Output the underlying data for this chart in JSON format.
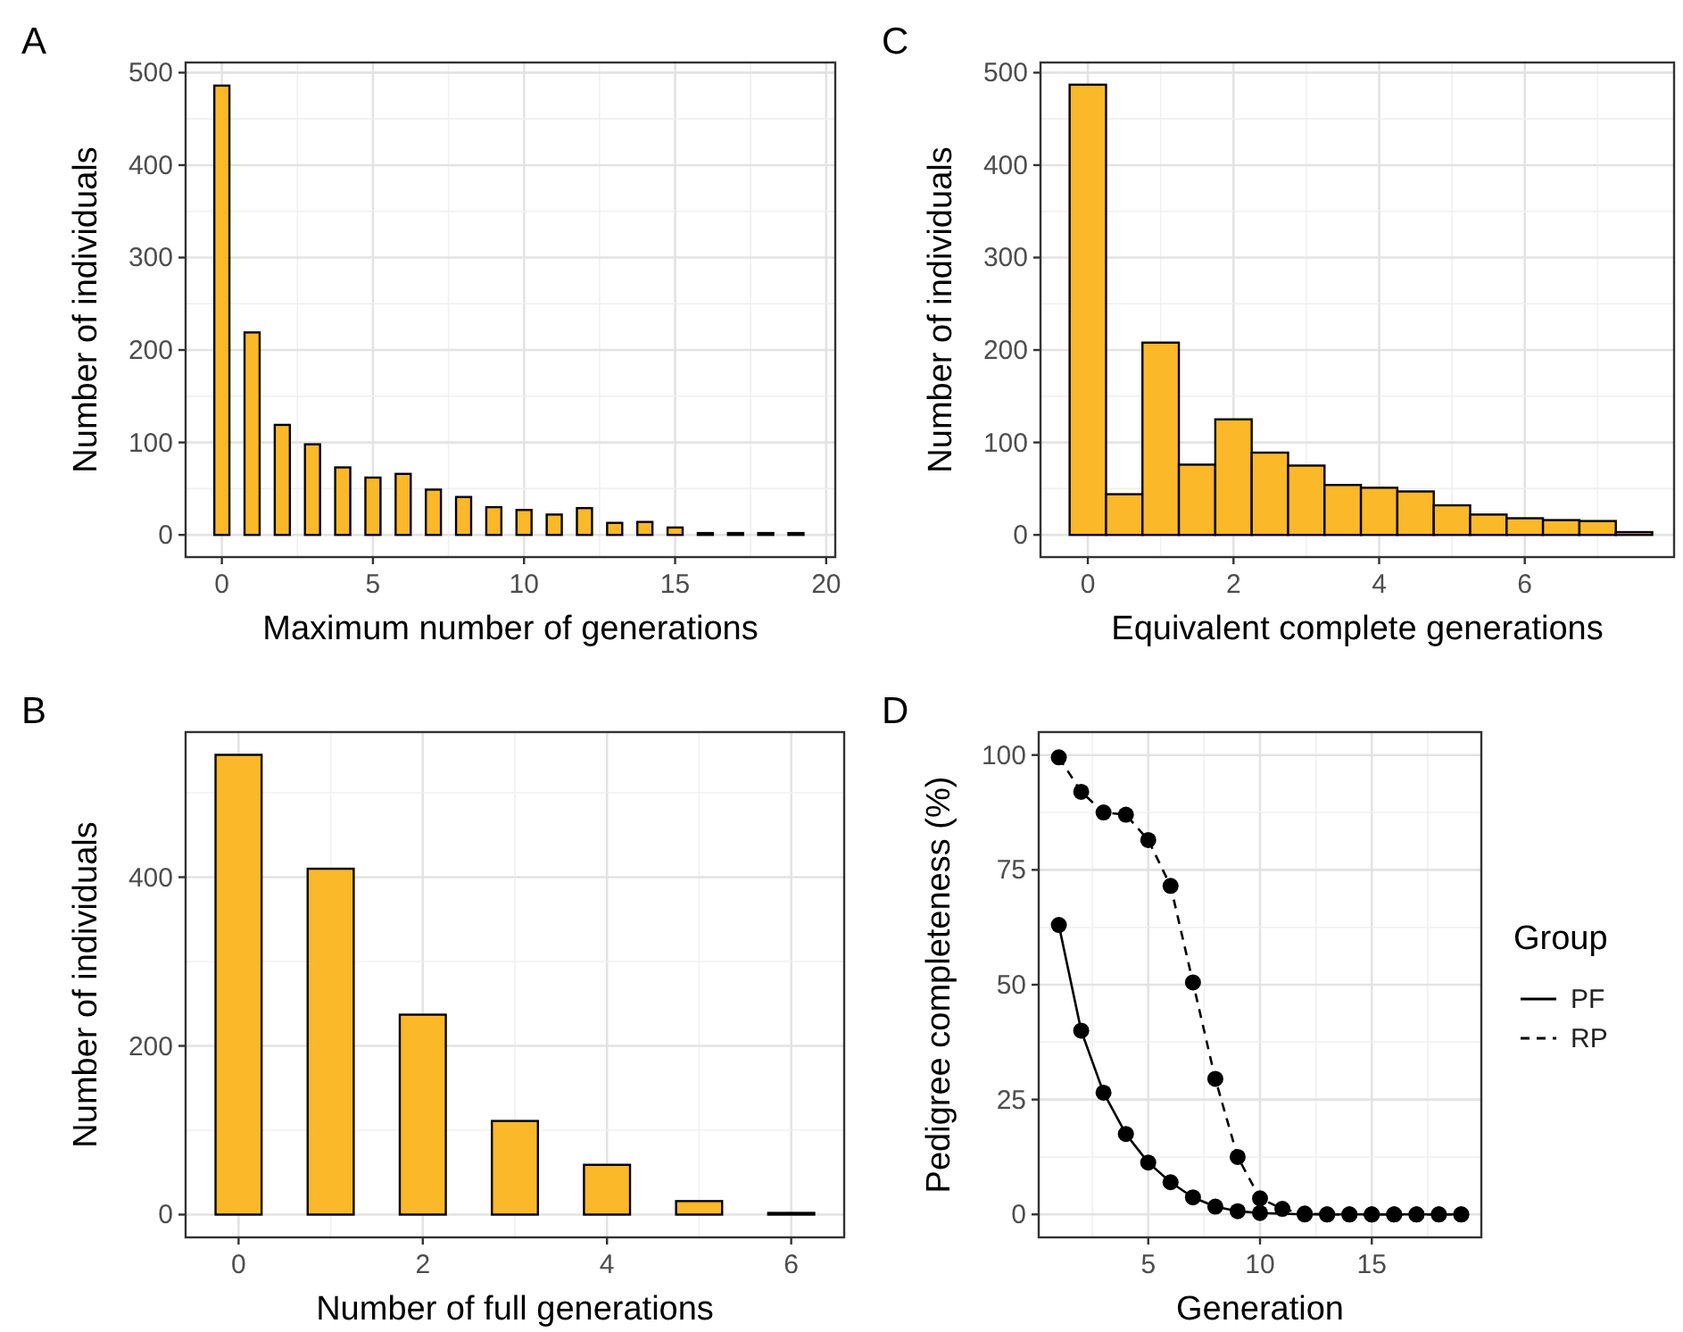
{
  "chart_data": [
    {
      "type": "bar",
      "title": "A",
      "xlabel": "Maximum number of generations",
      "ylabel": "Number of individuals",
      "x": [
        0,
        1,
        2,
        3,
        4,
        5,
        6,
        7,
        8,
        9,
        10,
        11,
        12,
        13,
        14,
        15,
        16,
        17,
        18,
        19
      ],
      "values": [
        486,
        219,
        119,
        98,
        73,
        62,
        66,
        49,
        41,
        30,
        27,
        22,
        29,
        13,
        14,
        8,
        2,
        2,
        2,
        2
      ],
      "color": "#fbb829",
      "xlim": [
        -1.2,
        20.3
      ],
      "ylim": [
        -24,
        511
      ],
      "xticks": [
        0,
        5,
        10,
        15,
        20
      ],
      "yticks": [
        0,
        100,
        200,
        300,
        400,
        500
      ],
      "grid": true
    },
    {
      "type": "histogram",
      "title": "C",
      "xlabel": "Equivalent complete generations",
      "ylabel": "Number of individuals",
      "bins": [
        -0.25,
        0.25,
        0.75,
        1.25,
        1.75,
        2.25,
        2.75,
        3.25,
        3.75,
        4.25,
        4.75,
        5.25,
        5.75,
        6.25,
        6.75,
        7.25,
        7.75
      ],
      "values": [
        487,
        44,
        208,
        76,
        125,
        89,
        75,
        54,
        51,
        47,
        32,
        22,
        18,
        16,
        15,
        3
      ],
      "color": "#fbb829",
      "xlim": [
        -0.65,
        8.05
      ],
      "ylim": [
        -24,
        511
      ],
      "xticks": [
        0,
        2,
        4,
        6
      ],
      "yticks": [
        0,
        100,
        200,
        300,
        400,
        500
      ],
      "grid": true
    },
    {
      "type": "bar",
      "title": "B",
      "xlabel": "Number of full generations",
      "ylabel": "Number of individuals",
      "x": [
        0,
        1,
        2,
        3,
        4,
        5,
        6
      ],
      "values": [
        545,
        410,
        237,
        111,
        59,
        16,
        2
      ],
      "color": "#fbb829",
      "xlim": [
        -0.575,
        6.575
      ],
      "ylim": [
        -27,
        572
      ],
      "xticks": [
        0,
        2,
        4,
        6
      ],
      "yticks": [
        0,
        200,
        400
      ],
      "grid": true
    },
    {
      "type": "line",
      "title": "D",
      "xlabel": "Generation",
      "ylabel": "Pedigree completeness (%)",
      "legend_title": "Group",
      "legend": "right",
      "marker": "circle",
      "x": [
        1,
        2,
        3,
        4,
        5,
        6,
        7,
        8,
        9,
        10,
        11,
        12,
        13,
        14,
        15,
        16,
        17,
        18,
        19
      ],
      "series": [
        {
          "name": "PF",
          "color": "#000000",
          "line_style": "solid",
          "values": [
            63,
            40,
            26.5,
            17.5,
            11.3,
            7,
            3.7,
            1.7,
            0.7,
            0.3,
            null,
            0,
            0,
            0,
            0,
            0,
            0,
            0,
            0
          ]
        },
        {
          "name": "RP",
          "color": "#000000",
          "line_style": "dashed",
          "values": [
            99.5,
            92,
            87.5,
            87,
            81.5,
            71.5,
            50.5,
            29.5,
            12.5,
            3.5,
            1.2,
            0.2,
            0,
            0,
            0,
            0,
            0,
            0,
            0
          ]
        }
      ],
      "xlim": [
        0.1,
        19.9
      ],
      "ylim": [
        -5,
        105
      ],
      "xticks": [
        5,
        10,
        15
      ],
      "yticks": [
        0,
        25,
        50,
        75,
        100
      ],
      "grid": true
    }
  ]
}
